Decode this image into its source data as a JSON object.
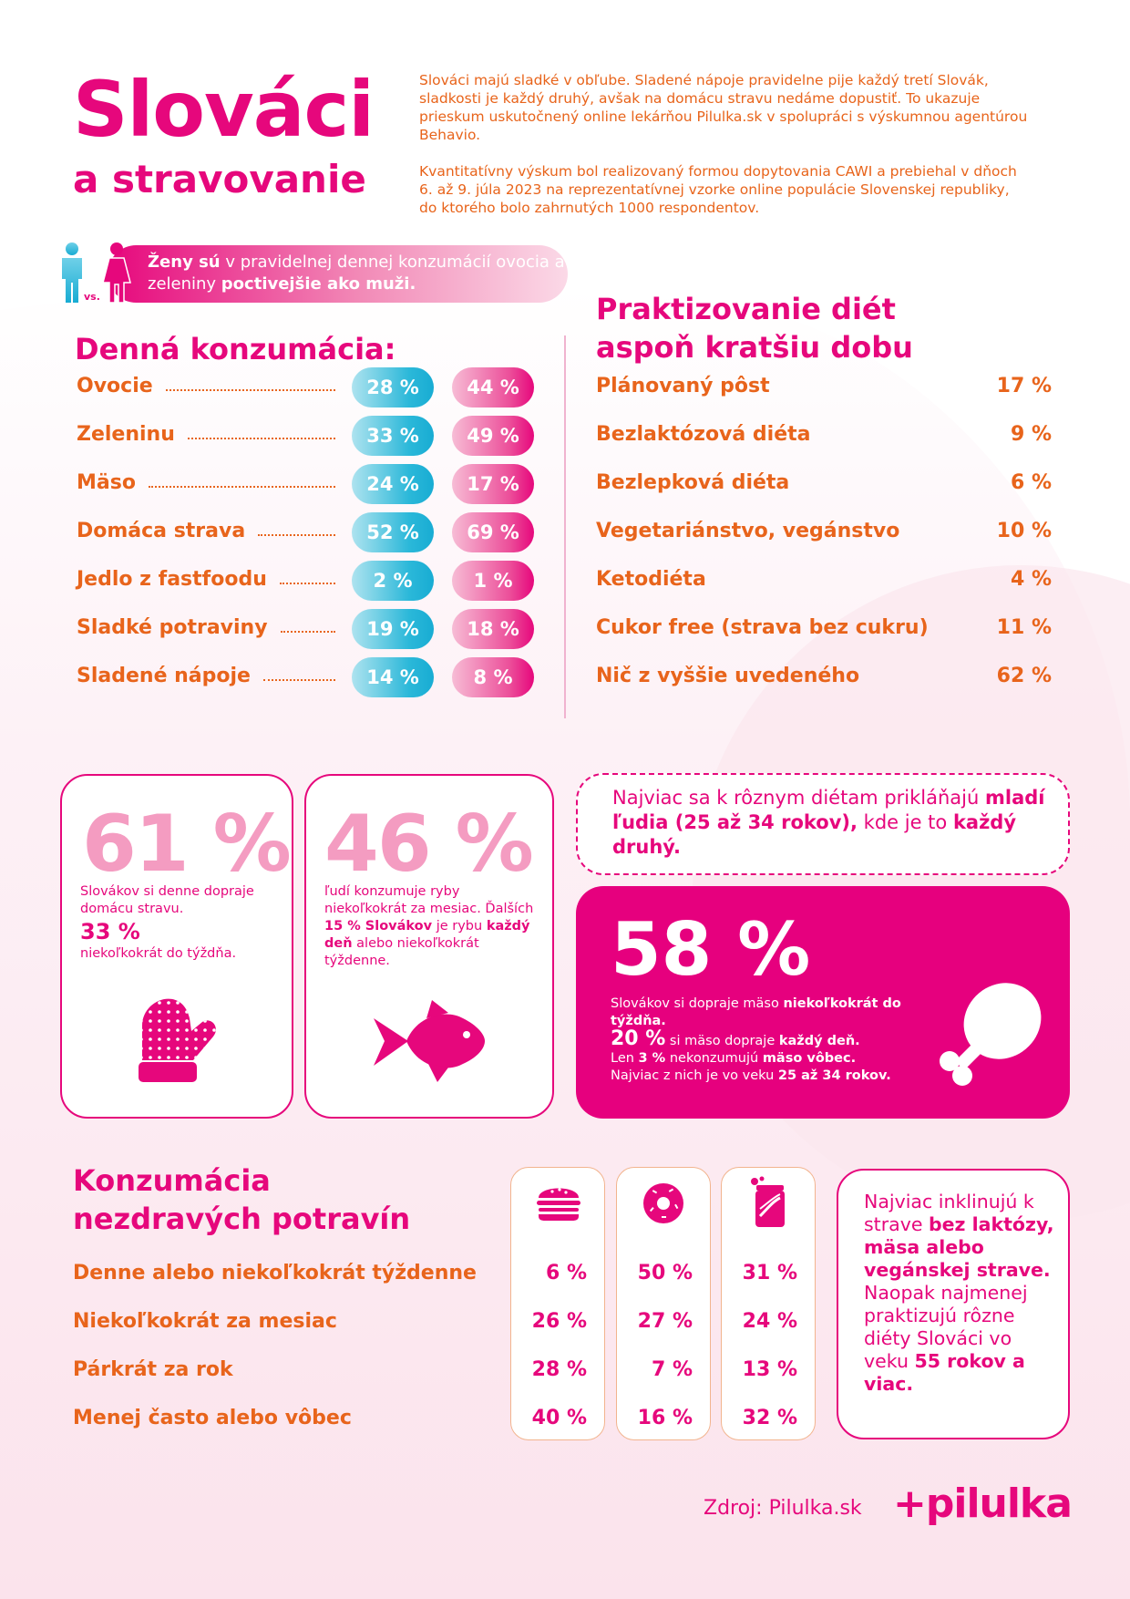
{
  "header": {
    "title": "Slováci",
    "subtitle": "a stravovanie",
    "intro_p1": "Slováci majú sladké v obľube. Sladené nápoje pravidelne pije každý tretí Slovák, sladkosti je každý druhý, avšak na domácu stravu nedáme dopustiť. To ukazuje prieskum uskutočnený online lekárňou Pilulka.sk v spolupráci s výskumnou agentúrou Behavio.",
    "intro_p2": "Kvantitatívny výskum bol realizovaný formou dopytovania CAWI a prebiehal v dňoch 6. až 9. júla 2023 na reprezentatívnej vzorke online populácie Slovenskej republiky, do ktorého bolo zahrnutých 1000 respondentov."
  },
  "gender_banner": {
    "vs_label": "vs.",
    "part1": "Ženy sú",
    "part2": " v pravidelnej dennej konzumácií ovocia a zeleniny ",
    "part3": "poctivejšie ako muži."
  },
  "daily": {
    "heading": "Denná konzumácia:",
    "rows": [
      {
        "label": "Ovocie",
        "men": "28 %",
        "women": "44 %"
      },
      {
        "label": "Zeleninu",
        "men": "33 %",
        "women": "49 %"
      },
      {
        "label": "Mäso",
        "men": "24 %",
        "women": "17 %"
      },
      {
        "label": "Domáca strava",
        "men": "52 %",
        "women": "69 %"
      },
      {
        "label": "Jedlo z fastfoodu",
        "men": "2 %",
        "women": "1 %"
      },
      {
        "label": "Sladké potraviny",
        "men": "19 %",
        "women": "18 %"
      },
      {
        "label": "Sladené nápoje",
        "men": "14 %",
        "women": "8 %"
      }
    ]
  },
  "diets": {
    "heading_line1": "Praktizovanie diét",
    "heading_line2": "aspoň kratšiu dobu",
    "rows": [
      {
        "label": "Plánovaný pôst",
        "value": "17 %"
      },
      {
        "label": "Bezlaktózová diéta",
        "value": "9 %"
      },
      {
        "label": "Bezlepková diéta",
        "value": "6 %"
      },
      {
        "label": "Vegetariánstvo, vegánstvo",
        "value": "10 %"
      },
      {
        "label": "Ketodiéta",
        "value": "4 %"
      },
      {
        "label": "Cukor free (strava bez cukru)",
        "value": "11 %"
      },
      {
        "label": "Nič z vyššie uvedeného",
        "value": "62 %"
      }
    ]
  },
  "card_home": {
    "big": "61 %",
    "text1": "Slovákov si denne dopraje domácu stravu.",
    "big2": "33 %",
    "text2": "niekoľkokrát do týždňa."
  },
  "card_fish": {
    "big": "46 %",
    "text1": "ľudí konzumuje ryby niekoľkokrát za mesiac. Ďalších ",
    "b1": "15 % Slovákov",
    "text2": " je rybu ",
    "b2": "každý deň",
    "text3": " alebo niekoľkokrát týždenne."
  },
  "dashed_note": {
    "t1": "Najviac sa k rôznym diétam prikláňajú ",
    "b1": "mladí ľudia (25 až 34 rokov),",
    "t2": " kde je to ",
    "b2": "každý druhý."
  },
  "card_meat": {
    "big": "58 %",
    "t1": "Slovákov si dopraje mäso ",
    "b1": "niekoľkokrát do týždňa.",
    "big2": "20 %",
    "t2": " si mäso dopraje ",
    "b2": "každý deň.",
    "t3": "Len ",
    "b3": "3 %",
    "t4": " nekonzumujú ",
    "b4": "mäso vôbec.",
    "t5": "Najviac z nich je vo veku ",
    "b5": "25 až 34 rokov."
  },
  "unhealthy": {
    "heading_line1": "Konzumácia",
    "heading_line2": "nezdravých potravín",
    "columns": [
      "burger-icon",
      "donut-icon",
      "soda-can-icon"
    ],
    "rows": [
      {
        "label": "Denne alebo niekoľkokrát týždenne",
        "values": [
          "6 %",
          "50 %",
          "31 %"
        ]
      },
      {
        "label": "Niekoľkokrát za mesiac",
        "values": [
          "26 %",
          "27 %",
          "24 %"
        ]
      },
      {
        "label": "Párkrát za rok",
        "values": [
          "28 %",
          "7 %",
          "13 %"
        ]
      },
      {
        "label": "Menej často alebo vôbec",
        "values": [
          "40 %",
          "16 %",
          "32 %"
        ]
      }
    ]
  },
  "info_box": {
    "t1": "Najviac inklinujú k strave ",
    "b1": "bez laktózy, mäsa alebo vegánskej strave.",
    "t2": " Naopak najmenej praktizujú rôzne diéty Slováci vo veku ",
    "b2": "55 rokov a viac."
  },
  "footer": {
    "source": "Zdroj: Pilulka.sk",
    "logo": "+pilulka"
  },
  "colors": {
    "magenta": "#e6077c",
    "orange": "#e8641b",
    "blue": "#18acd3"
  }
}
